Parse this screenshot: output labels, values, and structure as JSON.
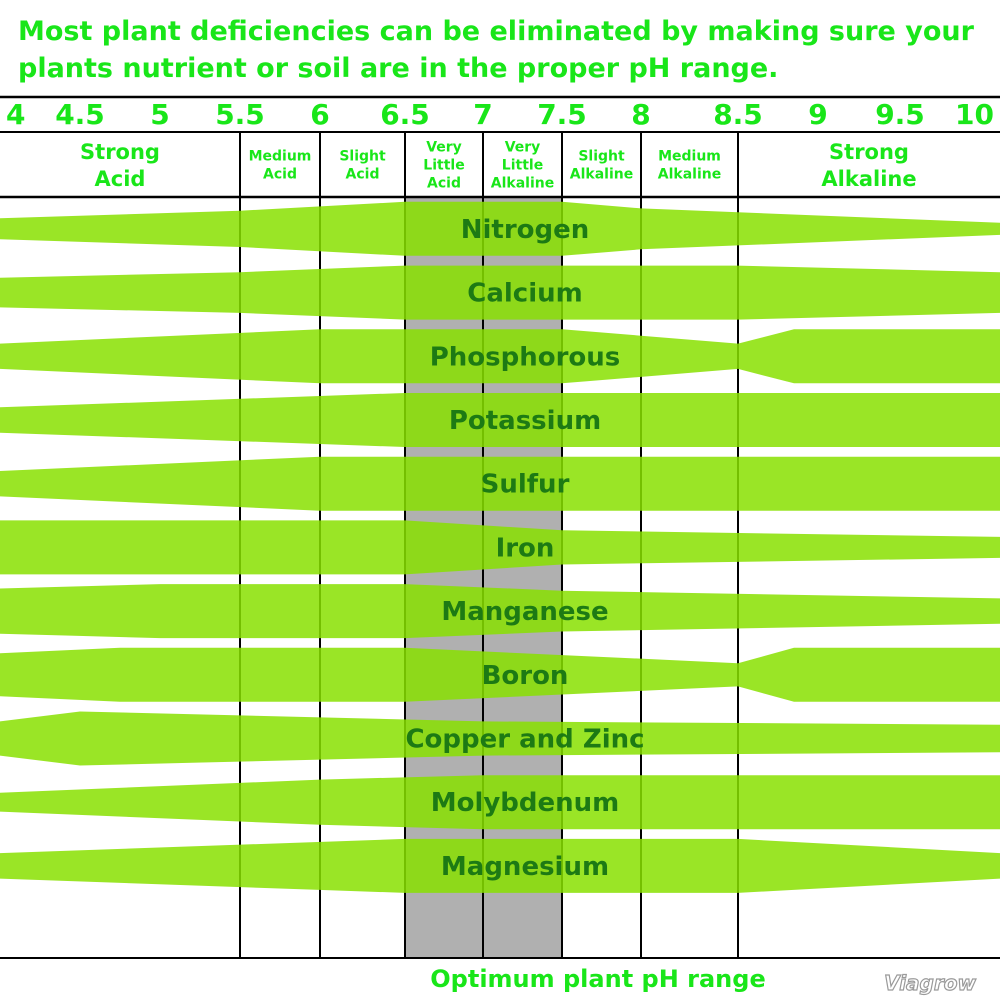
{
  "title_lines": [
    "Most plant deficiencies can be eliminated by making sure your",
    "plants nutrient or soil are in the proper pH range."
  ],
  "ph_ticks": [
    "4",
    "4.5",
    "5",
    "5.5",
    "6",
    "6.5",
    "7",
    "7.5",
    "8",
    "8.5",
    "9",
    "9.5",
    "10"
  ],
  "zones": [
    {
      "lines": [
        "Strong",
        "Acid"
      ],
      "from": 4.0,
      "to": 5.5,
      "size": "big"
    },
    {
      "lines": [
        "Medium",
        "Acid"
      ],
      "from": 5.5,
      "to": 6.0,
      "size": "small"
    },
    {
      "lines": [
        "Slight",
        "Acid"
      ],
      "from": 6.0,
      "to": 6.5,
      "size": "small"
    },
    {
      "lines": [
        "Very",
        "Little",
        "Acid"
      ],
      "from": 6.5,
      "to": 7.0,
      "size": "small"
    },
    {
      "lines": [
        "Very",
        "Little",
        "Alkaline"
      ],
      "from": 7.0,
      "to": 7.5,
      "size": "small"
    },
    {
      "lines": [
        "Slight",
        "Alkaline"
      ],
      "from": 7.5,
      "to": 8.0,
      "size": "small"
    },
    {
      "lines": [
        "Medium",
        "Alkaline"
      ],
      "from": 8.0,
      "to": 8.5,
      "size": "small"
    },
    {
      "lines": [
        "Strong",
        "Alkaline"
      ],
      "from": 8.5,
      "to": 10.0,
      "size": "big"
    }
  ],
  "optimum_range": [
    6.5,
    7.5
  ],
  "footer_label": "Optimum plant pH range",
  "brand": "Viagrow",
  "colors": {
    "title_green": "#19e619",
    "band_green": "#88e000",
    "label_dark_green": "#1d7a14",
    "optimum_gray": "#b0b0b0"
  },
  "chart_data": {
    "type": "band",
    "x_axis": "pH",
    "xlim": [
      4,
      10
    ],
    "relative_availability_scale": [
      0,
      1
    ],
    "nutrients": [
      {
        "name": "Nitrogen",
        "points": [
          [
            4.0,
            0.25
          ],
          [
            5.5,
            0.6
          ],
          [
            6.5,
            1.0
          ],
          [
            7.5,
            1.0
          ],
          [
            8.0,
            0.7
          ],
          [
            10.0,
            0.05
          ]
        ]
      },
      {
        "name": "Calcium",
        "points": [
          [
            4.0,
            0.45
          ],
          [
            5.5,
            0.7
          ],
          [
            6.5,
            1.0
          ],
          [
            7.5,
            1.0
          ],
          [
            8.5,
            1.0
          ],
          [
            10.0,
            0.7
          ]
        ]
      },
      {
        "name": "Phosphorous",
        "points": [
          [
            4.0,
            0.35
          ],
          [
            6.0,
            1.0
          ],
          [
            7.5,
            1.0
          ],
          [
            8.5,
            0.35
          ],
          [
            8.85,
            1.0
          ],
          [
            10.0,
            1.0
          ]
        ]
      },
      {
        "name": "Potassium",
        "points": [
          [
            4.0,
            0.35
          ],
          [
            6.5,
            1.0
          ],
          [
            7.5,
            1.0
          ],
          [
            10.0,
            1.0
          ]
        ]
      },
      {
        "name": "Sulfur",
        "points": [
          [
            4.0,
            0.35
          ],
          [
            6.0,
            1.0
          ],
          [
            7.5,
            1.0
          ],
          [
            10.0,
            1.0
          ]
        ]
      },
      {
        "name": "Iron",
        "points": [
          [
            4.0,
            1.0
          ],
          [
            6.5,
            1.0
          ],
          [
            7.5,
            0.55
          ],
          [
            10.0,
            0.25
          ]
        ]
      },
      {
        "name": "Manganese",
        "points": [
          [
            4.0,
            0.8
          ],
          [
            5.0,
            1.0
          ],
          [
            6.5,
            1.0
          ],
          [
            7.5,
            0.7
          ],
          [
            10.0,
            0.35
          ]
        ]
      },
      {
        "name": "Boron",
        "points": [
          [
            4.0,
            0.75
          ],
          [
            4.75,
            1.0
          ],
          [
            6.5,
            1.0
          ],
          [
            8.5,
            0.3
          ],
          [
            8.85,
            1.0
          ],
          [
            10.0,
            1.0
          ]
        ]
      },
      {
        "name": "Copper and Zinc",
        "points": [
          [
            4.0,
            0.55
          ],
          [
            4.5,
            1.0
          ],
          [
            7.0,
            0.55
          ],
          [
            10.0,
            0.4
          ]
        ]
      },
      {
        "name": "Molybdenum",
        "points": [
          [
            4.0,
            0.2
          ],
          [
            6.0,
            0.8
          ],
          [
            7.0,
            1.0
          ],
          [
            10.0,
            1.0
          ]
        ]
      },
      {
        "name": "Magnesium",
        "points": [
          [
            4.0,
            0.35
          ],
          [
            6.5,
            1.0
          ],
          [
            8.5,
            1.0
          ],
          [
            10.0,
            0.35
          ]
        ]
      }
    ]
  }
}
